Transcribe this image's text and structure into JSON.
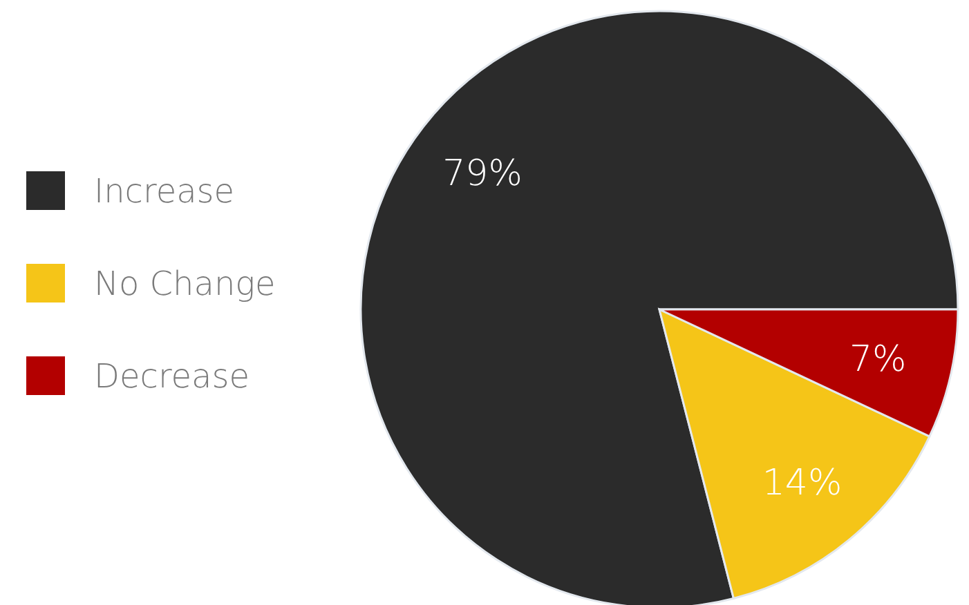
{
  "chart_data": {
    "type": "pie",
    "categories": [
      "Increase",
      "No Change",
      "Decrease"
    ],
    "values": [
      79,
      14,
      7
    ],
    "value_labels": [
      "79%",
      "14%",
      "7%"
    ],
    "colors": [
      "#2b2b2b",
      "#f5c518",
      "#b30000"
    ],
    "legend": "left"
  }
}
